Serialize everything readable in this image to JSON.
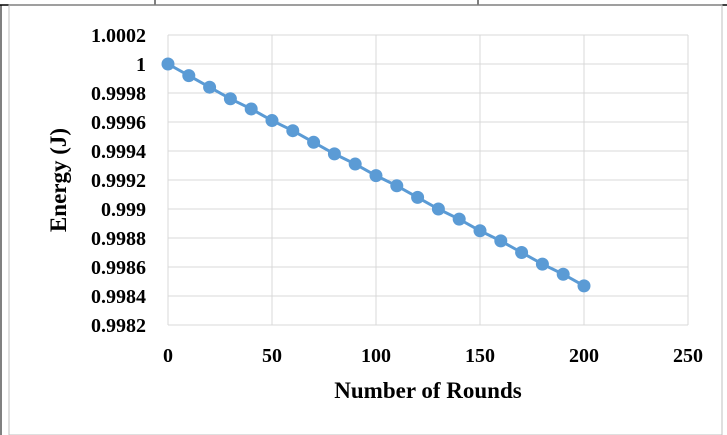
{
  "chart_data": {
    "type": "line",
    "title": "",
    "xlabel": "Number of Rounds",
    "ylabel": "Energy (J)",
    "xlim": [
      0,
      250
    ],
    "ylim": [
      0.9982,
      1.0002
    ],
    "x_ticks": [
      0,
      50,
      100,
      150,
      200,
      250
    ],
    "x_tick_labels": [
      "0",
      "50",
      "100",
      "150",
      "200",
      "250"
    ],
    "y_ticks": [
      0.9982,
      0.9984,
      0.9986,
      0.9988,
      0.999,
      0.9992,
      0.9994,
      0.9996,
      0.9998,
      1,
      1.0002
    ],
    "y_tick_labels": [
      "0.9982",
      "0.9984",
      "0.9986",
      "0.9988",
      "0.999",
      "0.9992",
      "0.9994",
      "0.9996",
      "0.9998",
      "1",
      "1.0002"
    ],
    "grid": true,
    "legend": "none",
    "series": [
      {
        "color": "#5B9BD5",
        "x": [
          0,
          10,
          20,
          30,
          40,
          50,
          60,
          70,
          80,
          90,
          100,
          110,
          120,
          130,
          140,
          150,
          160,
          170,
          180,
          190,
          200
        ],
        "values": [
          1.0,
          0.99992,
          0.99984,
          0.99976,
          0.99969,
          0.99961,
          0.99954,
          0.99946,
          0.99938,
          0.99931,
          0.99923,
          0.99916,
          0.99908,
          0.999,
          0.99893,
          0.99885,
          0.99878,
          0.9987,
          0.99862,
          0.99855,
          0.99847
        ]
      }
    ],
    "gridline_color": "#D9D9D9",
    "frame_color": "#BFBFBF"
  }
}
